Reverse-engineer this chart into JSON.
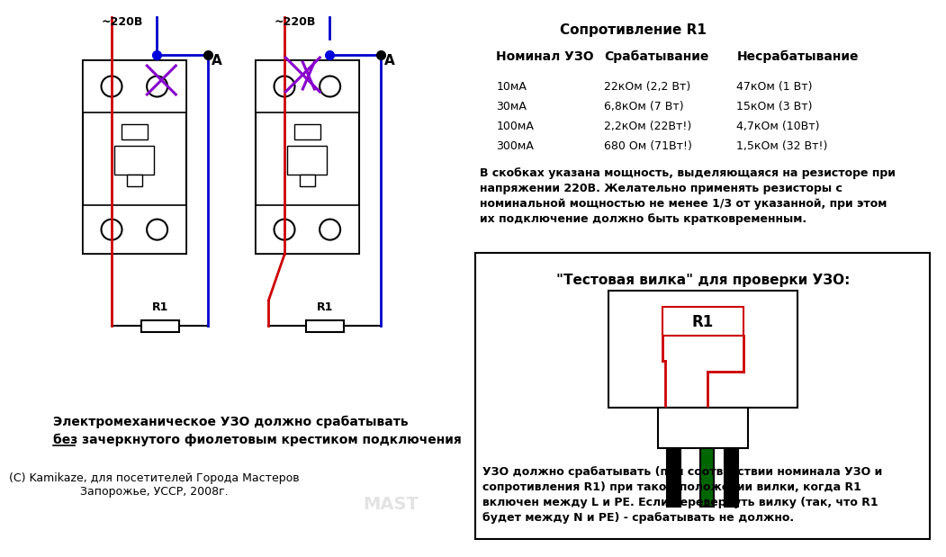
{
  "bg_color": "#ffffff",
  "title_table": "Сопротивление R1",
  "table_header": [
    "Номинал УЗО",
    "Срабатывание",
    "Несрабатывание"
  ],
  "table_rows": [
    [
      "10мА",
      "22кОм (2,2 Вт)",
      "47кОм (1 Вт)"
    ],
    [
      "30мА",
      "6,8кОм (7 Вт)",
      "15кОм (3 Вт)"
    ],
    [
      "100мА",
      "2,2кОм (22Вт!)",
      "4,7кОм (10Вт)"
    ],
    [
      "300мА",
      "680 Ом (71Вт!)",
      "1,5кОм (32 Вт!)"
    ]
  ],
  "note_text": "В скобках указана мощность, выделяющаяся на резисторе при\nнапряжении 220В. Желательно применять резисторы с\nноминальной мощностью не менее 1/3 от указанной, при этом\nих подключение должно быть кратковременным.",
  "bottom_left_text_1": "Электромеханическое УЗО должно срабатывать",
  "bottom_left_text_2": "без зачеркнутого фиолетовым крестиком подключения",
  "copyright_text": "(C) Kamikaze, для посетителей Города Мастеров\nЗапорожье, УССР, 2008г.",
  "test_fork_title": "\"Тестовая вилка\" для проверки УЗО:",
  "bottom_right_text": "УЗО должно срабатывать (при соответствии номинала УЗО и\nсопротивления R1) при таком положении вилки, когда R1\nвключен между L и PE. Если перевернуть вилку (так, что R1\nбудет между N и PE) - срабатывать не должно.",
  "voltage_label": "~220В",
  "point_A_label": "A",
  "R1_label": "R1",
  "wire_red": "#cc0000",
  "wire_blue": "#0000cc",
  "wire_purple": "#8800cc",
  "wire_black": "#000000",
  "wire_green": "#006600",
  "resistor_color": "#cc0000",
  "dot_blue": "#0000dd",
  "dot_black": "#000000"
}
